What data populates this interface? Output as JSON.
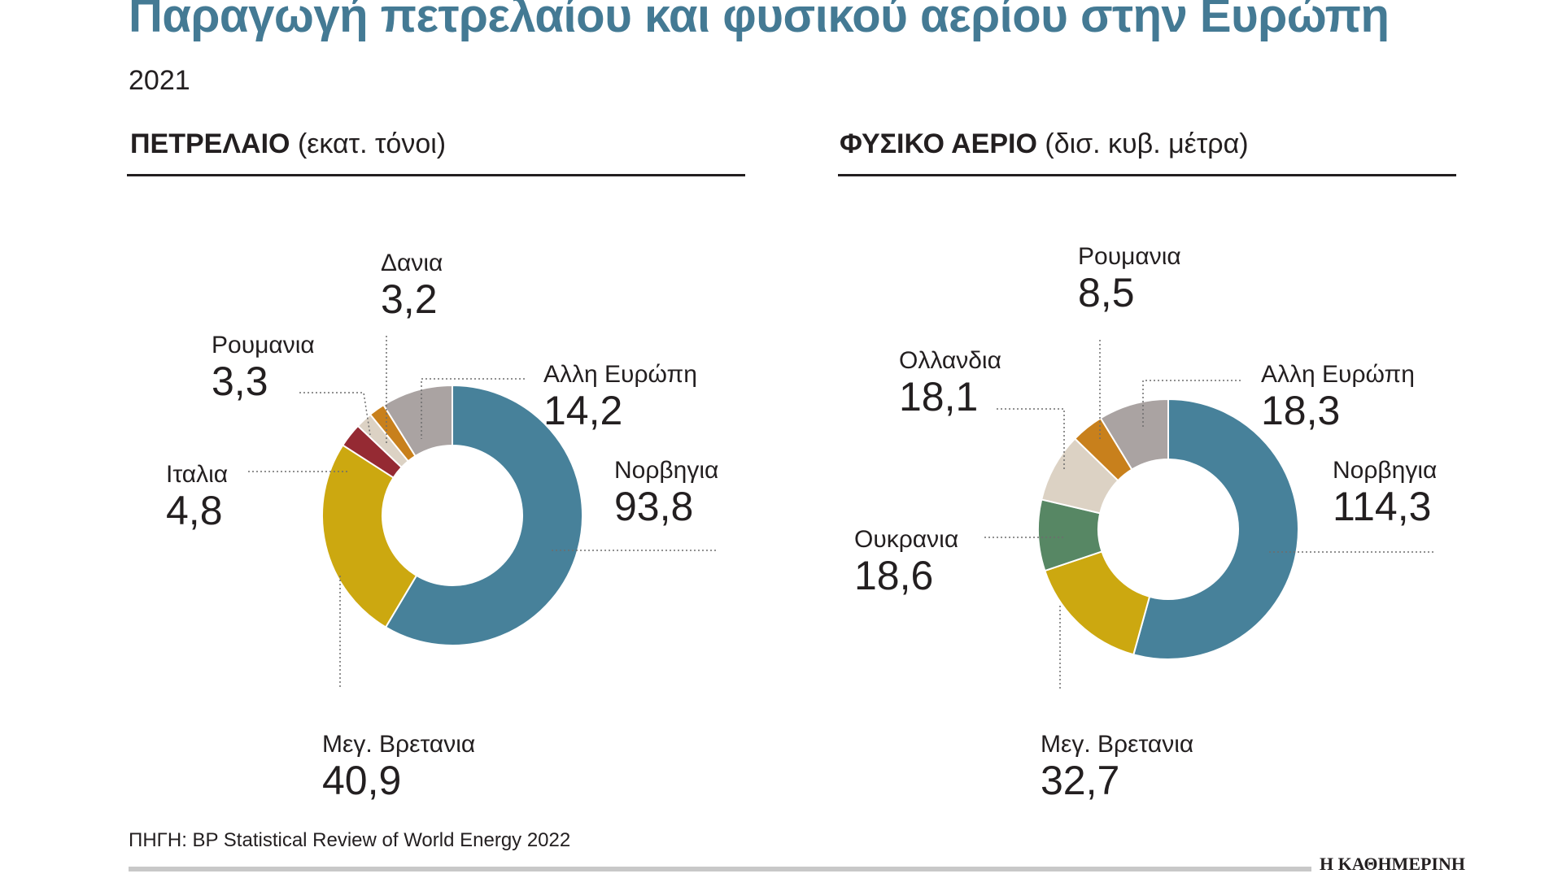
{
  "header": {
    "title": "Παραγωγή πετρελαίου και φυσικού αερίου στην Ευρώπη",
    "year": "2021"
  },
  "panels": [
    {
      "name_bold": "ΠΕΤΡΕΛΑΙΟ",
      "unit": "(εκατ. τόνοι)"
    },
    {
      "name_bold": "ΦΥΣΙΚΟ ΑΕΡΙΟ",
      "unit": "(δισ. κυβ. μέτρα)"
    }
  ],
  "chart_data": [
    {
      "type": "pie",
      "style": "donut",
      "title": "ΠΕΤΡΕΛΑΙΟ (εκατ. τόνοι)",
      "categories": [
        "Νορβηγια",
        "Μεγ. Βρετανια",
        "Ιταλια",
        "Ρουμανια",
        "Δανια",
        "Αλλη Ευρώπη"
      ],
      "values": [
        93.8,
        40.9,
        4.8,
        3.3,
        3.2,
        14.2
      ],
      "value_labels": [
        "93,8",
        "40,9",
        "4,8",
        "3,3",
        "3,2",
        "14,2"
      ],
      "colors": [
        "#47819a",
        "#cca810",
        "#952a33",
        "#dcd2c4",
        "#c8801c",
        "#aaa3a2"
      ]
    },
    {
      "type": "pie",
      "style": "donut",
      "title": "ΦΥΣΙΚΟ ΑΕΡΙΟ (δισ. κυβ. μέτρα)",
      "categories": [
        "Νορβηγια",
        "Μεγ. Βρετανια",
        "Ουκρανια",
        "Ολλανδια",
        "Ρουμανια",
        "Αλλη Ευρώπη"
      ],
      "values": [
        114.3,
        32.7,
        18.6,
        18.1,
        8.5,
        18.3
      ],
      "value_labels": [
        "114,3",
        "32,7",
        "18,6",
        "18,1",
        "8,5",
        "18,3"
      ],
      "colors": [
        "#47819a",
        "#cca810",
        "#578764",
        "#dcd2c4",
        "#c8801c",
        "#aaa3a2"
      ]
    }
  ],
  "source": "ΠΗΓΗ: BP Statistical Review of World Energy 2022",
  "brand": "Η ΚΑΘΗΜΕΡΙΝΗ"
}
